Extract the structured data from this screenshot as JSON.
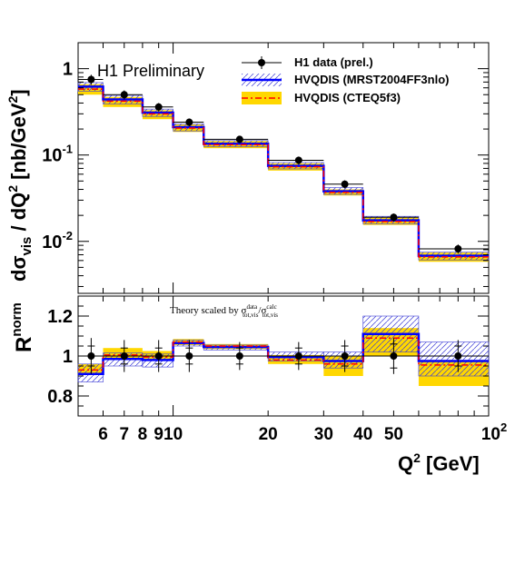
{
  "chart_data": [
    {
      "type": "histogram",
      "panel": "top",
      "text_label": "H1 Preliminary",
      "ylabel_parts": {
        "d": "d",
        "sigma": "σ",
        "sigma_sub": "vis",
        "slash": " / dQ",
        "q_sup": "2",
        "unit": " [nb/GeV",
        "unit_sup": "2",
        "close": "]"
      },
      "yscale": "log",
      "ylim": [
        0.0025,
        2.0
      ],
      "xscale": "log",
      "xlim": [
        5,
        100
      ],
      "y_ticks": [
        {
          "value": 1,
          "base": "1",
          "exp": ""
        },
        {
          "value": 0.1,
          "base": "10",
          "exp": "-1"
        },
        {
          "value": 0.01,
          "base": "10",
          "exp": "-2"
        }
      ],
      "bin_edges": [
        5,
        6,
        8,
        10,
        12.5,
        20,
        30,
        40,
        60,
        100
      ],
      "legend": [
        {
          "label": "H1 data (prel.)",
          "marker": "point"
        },
        {
          "label": "HVQDIS (MRST2004FF3nlo)",
          "marker": "blue-line-hatched"
        },
        {
          "label": "HVQDIS (CTEQ5f3)",
          "marker": "red-dashdot-yellow-band"
        }
      ],
      "series": [
        {
          "name": "H1 data (prel.)",
          "x": [
            5.5,
            7,
            9,
            11.25,
            16.25,
            25,
            35,
            50,
            80
          ],
          "y": [
            0.75,
            0.5,
            0.36,
            0.24,
            0.152,
            0.087,
            0.046,
            0.019,
            0.0082
          ],
          "yerr_low": [
            0.1,
            0.06,
            0.04,
            0.025,
            0.015,
            0.009,
            0.005,
            0.002,
            0.001
          ],
          "yerr_high": [
            0.1,
            0.06,
            0.04,
            0.025,
            0.015,
            0.009,
            0.005,
            0.002,
            0.001
          ]
        },
        {
          "name": "HVQDIS (MRST2004FF3nlo)",
          "values": [
            0.62,
            0.44,
            0.31,
            0.21,
            0.135,
            0.075,
            0.038,
            0.0175,
            0.0068
          ],
          "band_low": [
            0.55,
            0.39,
            0.28,
            0.19,
            0.125,
            0.069,
            0.035,
            0.016,
            0.0061
          ],
          "band_high": [
            0.69,
            0.49,
            0.34,
            0.23,
            0.147,
            0.082,
            0.042,
            0.0195,
            0.0075
          ]
        },
        {
          "name": "HVQDIS (CTEQ5f3)",
          "values": [
            0.58,
            0.42,
            0.3,
            0.205,
            0.132,
            0.073,
            0.037,
            0.017,
            0.0066
          ],
          "band_low": [
            0.5,
            0.36,
            0.26,
            0.185,
            0.12,
            0.066,
            0.034,
            0.0155,
            0.0058
          ],
          "band_high": [
            0.66,
            0.47,
            0.33,
            0.225,
            0.145,
            0.08,
            0.04,
            0.0188,
            0.0074
          ]
        }
      ]
    },
    {
      "type": "histogram",
      "panel": "bottom",
      "ylabel_parts": {
        "base": "R",
        "sup": "norm"
      },
      "annotation_parts": {
        "prefix": "Theory scaled by σ",
        "sup1": "data",
        "sub1": "tot,vis",
        "slash": "/σ",
        "sup2": "calc",
        "sub2": "tot,vis"
      },
      "ylim": [
        0.7,
        1.3
      ],
      "xscale": "log",
      "xlim": [
        5,
        100
      ],
      "y_ticks": [
        {
          "value": 1.2,
          "label": "1.2"
        },
        {
          "value": 1.0,
          "label": "1"
        },
        {
          "value": 0.8,
          "label": "0.8"
        }
      ],
      "reference_line": 1.0,
      "bin_edges": [
        5,
        6,
        8,
        10,
        12.5,
        20,
        30,
        40,
        60,
        100
      ],
      "xlabel_parts": {
        "q": "Q",
        "sup": "2",
        "unit": " [GeV]"
      },
      "x_ticks": [
        {
          "value": 6,
          "base": "6",
          "exp": ""
        },
        {
          "value": 7,
          "base": "7",
          "exp": ""
        },
        {
          "value": 8,
          "base": "8",
          "exp": ""
        },
        {
          "value": 9,
          "base": "9",
          "exp": ""
        },
        {
          "value": 10,
          "base": "10",
          "exp": ""
        },
        {
          "value": 20,
          "base": "20",
          "exp": ""
        },
        {
          "value": 30,
          "base": "30",
          "exp": ""
        },
        {
          "value": 40,
          "base": "40",
          "exp": ""
        },
        {
          "value": 50,
          "base": "50",
          "exp": ""
        },
        {
          "value": 100,
          "base": "10",
          "exp": "2"
        }
      ],
      "series": [
        {
          "name": "H1 data (prel.)",
          "x": [
            5.5,
            7,
            9,
            11.25,
            16.25,
            25,
            35,
            50,
            80
          ],
          "y": [
            1,
            1,
            1,
            1,
            1,
            1,
            1,
            1,
            1
          ],
          "yerr_stat": [
            0.05,
            0.04,
            0.04,
            0.04,
            0.04,
            0.04,
            0.05,
            0.06,
            0.05
          ],
          "yerr_tot": [
            0.09,
            0.08,
            0.08,
            0.08,
            0.07,
            0.07,
            0.08,
            0.09,
            0.08
          ]
        },
        {
          "name": "HVQDIS (MRST2004FF3nlo)",
          "values": [
            0.91,
            0.985,
            0.98,
            1.065,
            1.045,
            0.995,
            0.975,
            1.11,
            0.975
          ],
          "band_low": [
            0.87,
            0.95,
            0.945,
            1.05,
            1.03,
            0.975,
            0.94,
            1.02,
            0.9
          ],
          "band_high": [
            0.96,
            1.015,
            1.01,
            1.08,
            1.055,
            1.02,
            1.02,
            1.2,
            1.07
          ]
        },
        {
          "name": "HVQDIS (CTEQ5f3)",
          "values": [
            0.93,
            1.005,
            0.995,
            1.07,
            1.05,
            0.98,
            0.96,
            1.09,
            0.955
          ],
          "band_low": [
            0.91,
            0.98,
            0.975,
            1.055,
            1.035,
            0.96,
            0.9,
            1.0,
            0.85
          ],
          "band_high": [
            0.96,
            1.04,
            1.025,
            1.085,
            1.06,
            1.005,
            1.0,
            1.14,
            0.98
          ]
        }
      ]
    }
  ]
}
